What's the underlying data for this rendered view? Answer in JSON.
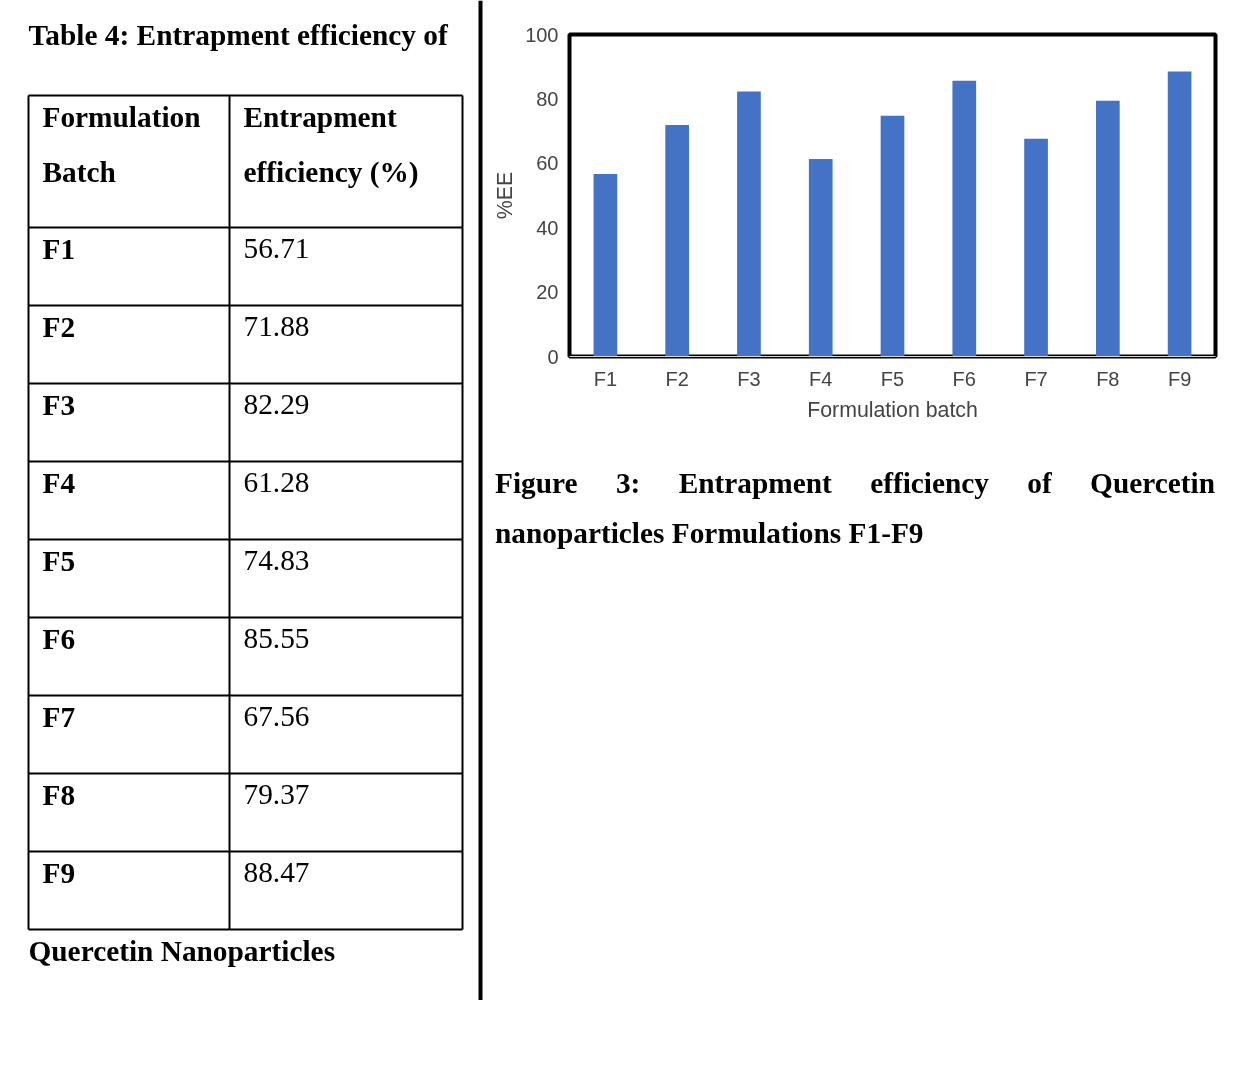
{
  "chart_data": [
    {
      "type": "other",
      "title": "Table 4: Entrapment efficiency of",
      "annotations": [
        "Formulation Batch",
        "Entrapment efficiency (%)",
        "F1",
        "56.71",
        "F2",
        "71.88",
        "F3",
        "82.29",
        "F4",
        "61.28",
        "F5",
        "74.83",
        "F6",
        "85.55",
        "F7",
        "67.56",
        "F8",
        "79.37",
        "F9",
        "88.47",
        "Quercetin Nanoparticles"
      ]
    },
    {
      "type": "bar",
      "title": "Figure 3: Entrapment efficiency of Quercetin nanoparticles Formulations F1-F9",
      "xlabel": "Formulation batch",
      "ylabel": "%EE",
      "categories": [
        "F1",
        "F2",
        "F3",
        "F4",
        "F5",
        "F6",
        "F7",
        "F8",
        "F9"
      ],
      "values": [
        56.7,
        71.9,
        82.3,
        61.3,
        74.8,
        85.6,
        67.6,
        79.4,
        88.5
      ],
      "color": "#4472c4",
      "ylim": [
        0,
        100
      ],
      "yticks": [
        0,
        20,
        40,
        60,
        80,
        100
      ],
      "grid": false
    }
  ]
}
